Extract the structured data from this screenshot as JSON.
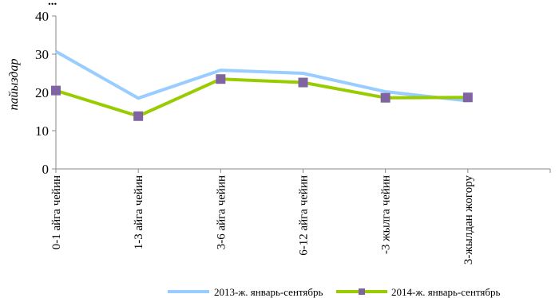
{
  "chart_data": {
    "type": "line",
    "title_fragment": "...",
    "ylabel": "пайыздар",
    "xlabel": "",
    "ylim": [
      0,
      40
    ],
    "yticks": [
      0,
      10,
      20,
      30,
      40
    ],
    "grid": false,
    "legend_position": "bottom",
    "categories": [
      "0-1 айга чейин",
      "1-3 айга чейин",
      "3-6 айга чейин",
      "6-12 айга чейин",
      "-3 жылга чейин",
      "3-жылдан жогору"
    ],
    "series": [
      {
        "name": "2013-ж. январь-сентябрь",
        "color": "#99ccff",
        "marker": "none",
        "values": [
          30.7,
          18.5,
          25.8,
          25.0,
          20.2,
          17.8
        ]
      },
      {
        "name": "2014-ж. январь-сентябрь",
        "color": "#99cc00",
        "marker": "square",
        "marker_color": "#8064a2",
        "values": [
          20.5,
          13.8,
          23.5,
          22.6,
          18.6,
          18.7
        ]
      }
    ]
  }
}
